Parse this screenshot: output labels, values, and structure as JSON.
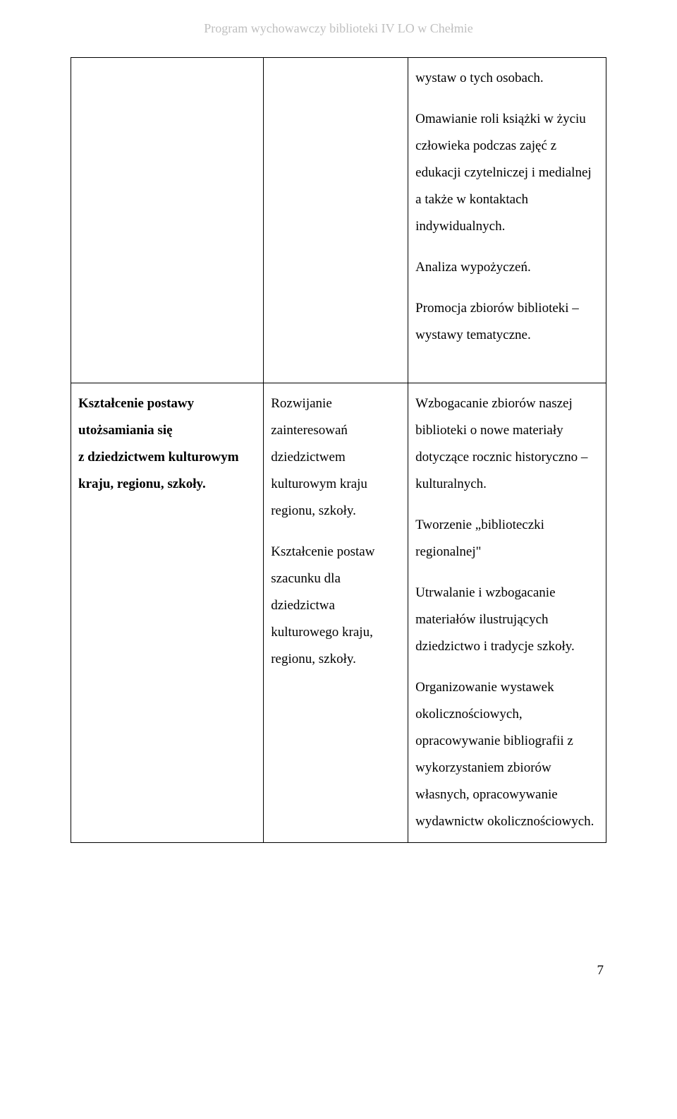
{
  "header": "Program wychowawczy biblioteki IV LO w Chełmie",
  "row1": {
    "c3p1": "wystaw o tych osobach.",
    "c3p2": "Omawianie roli książki w życiu człowieka podczas zajęć z edukacji czytelniczej i medialnej a także w kontaktach indywidualnych.",
    "c3p3": "Analiza wypożyczeń.",
    "c3p4": "Promocja zbiorów biblioteki – wystawy tematyczne."
  },
  "row2": {
    "c1p1a": "Kształcenie postawy utożsamiania się",
    "c1p1b": "z dziedzictwem kulturowym kraju, regionu, szkoły.",
    "c2p1": "Rozwijanie zainteresowań dziedzictwem kulturowym kraju regionu, szkoły.",
    "c2p2": "Kształcenie postaw szacunku dla dziedzictwa kulturowego kraju, regionu, szkoły.",
    "c3p1": "Wzbogacanie zbiorów naszej biblioteki o nowe materiały dotyczące rocznic historyczno – kulturalnych.",
    "c3p2": "Tworzenie „biblioteczki regionalnej\"",
    "c3p3": "Utrwalanie i wzbogacanie materiałów ilustrujących dziedzictwo i tradycje szkoły.",
    "c3p4": "Organizowanie wystawek okolicznościowych, opracowywanie bibliografii z wykorzystaniem zbiorów własnych, opracowywanie wydawnictw okolicznościowych."
  },
  "pageNumber": "7",
  "colors": {
    "headerText": "#bfbfbf",
    "bodyText": "#000000",
    "border": "#000000",
    "background": "#ffffff"
  },
  "typography": {
    "headerFontSize": 18,
    "bodyFontSize": 19,
    "lineHeight": 2.0,
    "fontFamily": "Times New Roman"
  },
  "layout": {
    "pageWidth": 960,
    "pageHeight": 1585,
    "col1WidthPct": 36,
    "col2WidthPct": 27,
    "col3WidthPct": 37
  }
}
